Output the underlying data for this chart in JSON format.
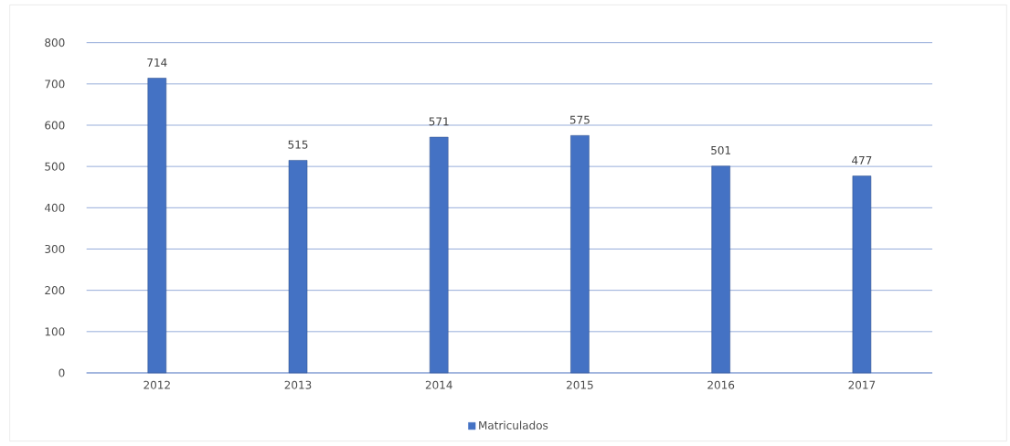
{
  "chart_data": {
    "type": "bar",
    "categories": [
      "2012",
      "2013",
      "2014",
      "2015",
      "2016",
      "2017"
    ],
    "series": [
      {
        "name": "Matriculados",
        "color": "#4472c4",
        "values": [
          714,
          515,
          571,
          575,
          501,
          477
        ]
      }
    ],
    "ylim": [
      0,
      800
    ],
    "yticks": [
      0,
      100,
      200,
      300,
      400,
      500,
      600,
      700,
      800
    ],
    "grid": "y",
    "legend": "bottom",
    "data_labels": true
  }
}
